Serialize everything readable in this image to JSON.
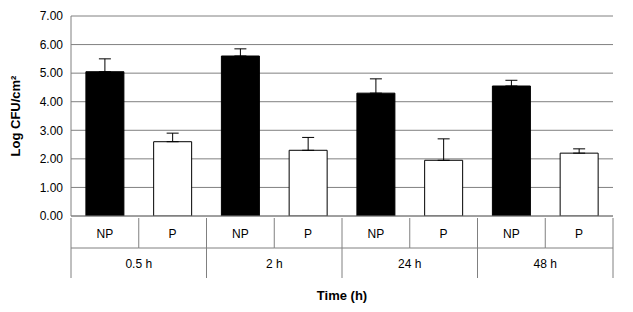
{
  "chart_data": {
    "type": "bar",
    "categories": [
      "NP",
      "P",
      "NP",
      "P",
      "NP",
      "P",
      "NP",
      "P"
    ],
    "groups": [
      "0.5 h",
      "2 h",
      "24 h",
      "48 h"
    ],
    "values": [
      5.05,
      2.6,
      5.6,
      2.3,
      4.3,
      1.95,
      4.55,
      2.2
    ],
    "errors": [
      0.45,
      0.3,
      0.25,
      0.45,
      0.5,
      0.75,
      0.2,
      0.15
    ],
    "colors": [
      "#000000",
      "#ffffff",
      "#000000",
      "#ffffff",
      "#000000",
      "#ffffff",
      "#000000",
      "#ffffff"
    ],
    "x_label": "Time (h)",
    "y_label": "Log CFU/cm²",
    "ylim": [
      0,
      7
    ],
    "yticks": [
      {
        "value": 0,
        "label": "0.00"
      },
      {
        "value": 1,
        "label": "1.00"
      },
      {
        "value": 2,
        "label": "2.00"
      },
      {
        "value": 3,
        "label": "3.00"
      },
      {
        "value": 4,
        "label": "4.00"
      },
      {
        "value": 5,
        "label": "5.00"
      },
      {
        "value": 6,
        "label": "6.00"
      },
      {
        "value": 7,
        "label": "7.00"
      }
    ],
    "grid": true
  }
}
